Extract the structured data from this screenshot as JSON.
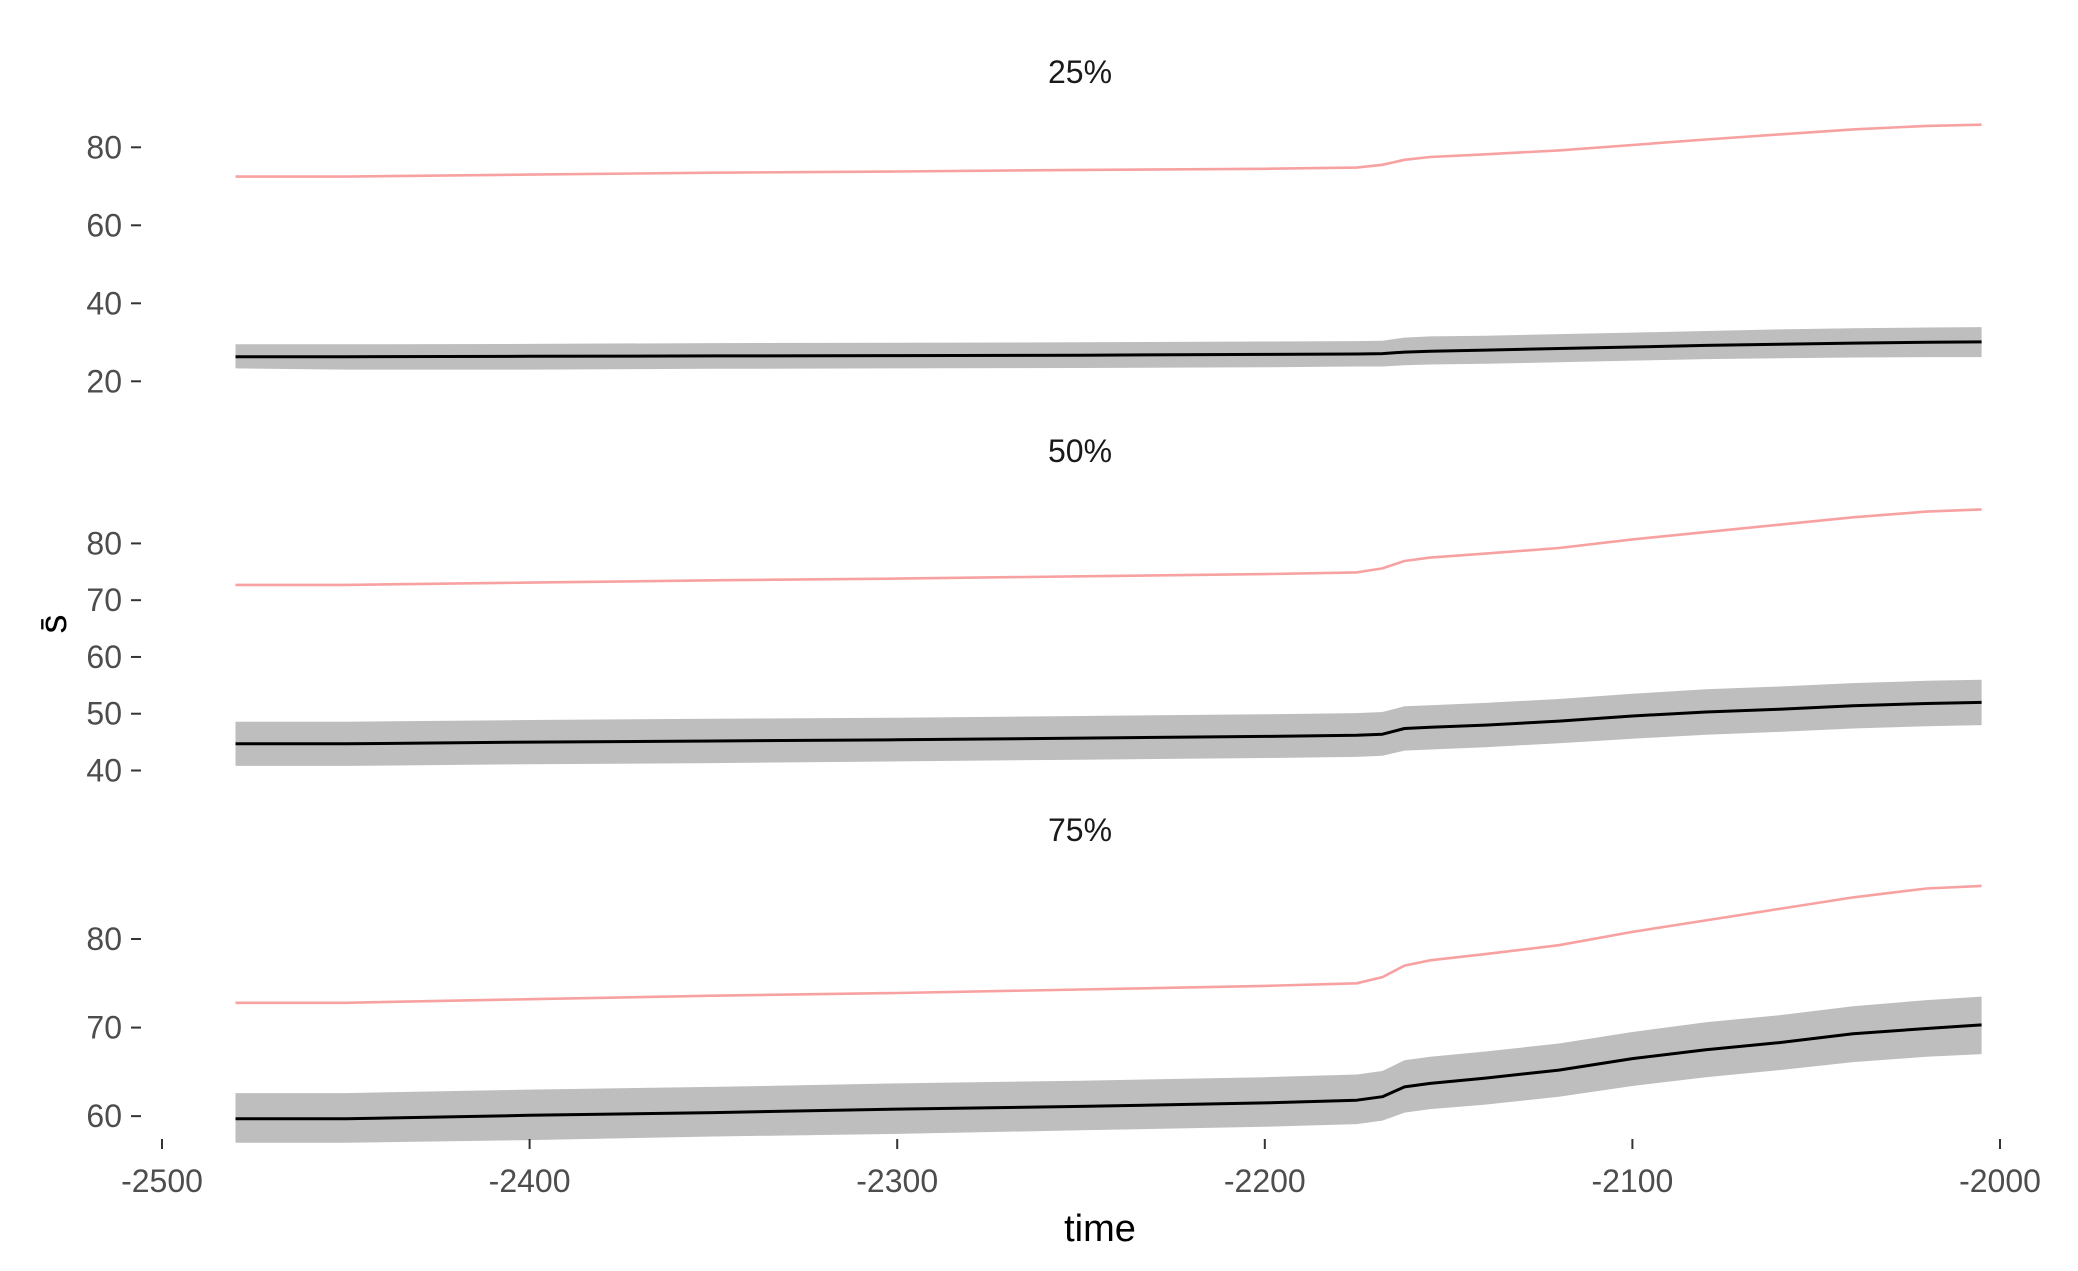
{
  "chart_data": {
    "type": "line",
    "xlabel": "time",
    "ylabel": "s̄",
    "xlim": [
      -2500,
      -2000
    ],
    "x_ticks": [
      "-2500",
      "-2400",
      "-2300",
      "-2200",
      "-2100",
      "-2000"
    ],
    "colors": {
      "upper_line": "#f8a1a1",
      "mean_line": "#000000",
      "band": "#bebebe"
    },
    "grid": false,
    "legend": "none",
    "panels": [
      {
        "title": "25%",
        "ylim": [
          17,
          87
        ],
        "y_ticks": [
          "20",
          "40",
          "60",
          "80"
        ],
        "series": [
          {
            "role": "upper",
            "x": [
              -2480,
              -2450,
              -2400,
              -2350,
              -2300,
              -2250,
              -2200,
              -2175,
              -2168,
              -2162,
              -2155,
              -2140,
              -2120,
              -2100,
              -2080,
              -2060,
              -2040,
              -2020,
              -2005
            ],
            "y": [
              72.5,
              72.5,
              73.0,
              73.5,
              73.8,
              74.2,
              74.5,
              74.8,
              75.5,
              76.8,
              77.5,
              78.2,
              79.2,
              80.6,
              82.0,
              83.3,
              84.6,
              85.5,
              85.8
            ]
          },
          {
            "role": "mean",
            "x": [
              -2480,
              -2450,
              -2400,
              -2350,
              -2300,
              -2250,
              -2200,
              -2175,
              -2168,
              -2162,
              -2155,
              -2140,
              -2120,
              -2100,
              -2080,
              -2060,
              -2040,
              -2020,
              -2005
            ],
            "y": [
              26.3,
              26.3,
              26.4,
              26.5,
              26.6,
              26.7,
              26.9,
              27.0,
              27.1,
              27.5,
              27.7,
              28.0,
              28.4,
              28.8,
              29.2,
              29.5,
              29.8,
              30.0,
              30.1
            ],
            "lower": [
              23.3,
              23.0,
              23.0,
              23.2,
              23.3,
              23.4,
              23.6,
              23.8,
              23.8,
              24.1,
              24.3,
              24.5,
              24.9,
              25.3,
              25.7,
              25.9,
              26.1,
              26.2,
              26.2
            ],
            "upper": [
              29.5,
              29.5,
              29.6,
              29.8,
              29.9,
              30.0,
              30.2,
              30.3,
              30.4,
              31.2,
              31.5,
              31.7,
              32.1,
              32.5,
              32.9,
              33.3,
              33.6,
              33.8,
              33.9
            ]
          }
        ]
      },
      {
        "title": "50%",
        "ylim": [
          38.5,
          88
        ],
        "y_ticks": [
          "40",
          "50",
          "60",
          "70",
          "80"
        ],
        "series": [
          {
            "role": "upper",
            "x": [
              -2480,
              -2450,
              -2400,
              -2350,
              -2300,
              -2250,
              -2200,
              -2175,
              -2168,
              -2162,
              -2155,
              -2140,
              -2120,
              -2100,
              -2080,
              -2060,
              -2040,
              -2020,
              -2005
            ],
            "y": [
              72.7,
              72.7,
              73.1,
              73.5,
              73.8,
              74.2,
              74.6,
              74.9,
              75.6,
              76.9,
              77.5,
              78.2,
              79.2,
              80.7,
              82.0,
              83.3,
              84.6,
              85.6,
              86.0
            ],
            "lower": [],
            "upper": []
          },
          {
            "role": "mean",
            "x": [
              -2480,
              -2450,
              -2400,
              -2350,
              -2300,
              -2250,
              -2200,
              -2175,
              -2168,
              -2162,
              -2155,
              -2140,
              -2120,
              -2100,
              -2080,
              -2060,
              -2040,
              -2020,
              -2005
            ],
            "y": [
              44.7,
              44.7,
              45.0,
              45.2,
              45.4,
              45.7,
              46.0,
              46.2,
              46.4,
              47.4,
              47.6,
              48.0,
              48.7,
              49.6,
              50.3,
              50.8,
              51.4,
              51.8,
              52.0
            ],
            "lower": [
              40.8,
              40.8,
              41.1,
              41.3,
              41.6,
              41.9,
              42.2,
              42.4,
              42.6,
              43.5,
              43.7,
              44.1,
              44.8,
              45.6,
              46.3,
              46.8,
              47.4,
              47.8,
              48.0
            ],
            "upper": [
              48.6,
              48.6,
              48.9,
              49.1,
              49.3,
              49.6,
              49.9,
              50.1,
              50.3,
              51.3,
              51.5,
              51.9,
              52.6,
              53.5,
              54.3,
              54.8,
              55.4,
              55.8,
              56.0
            ]
          }
        ]
      },
      {
        "title": "75%",
        "ylim": [
          55.5,
          87
        ],
        "y_ticks": [
          "60",
          "70",
          "80"
        ],
        "series": [
          {
            "role": "upper",
            "x": [
              -2480,
              -2450,
              -2400,
              -2350,
              -2300,
              -2250,
              -2200,
              -2175,
              -2168,
              -2162,
              -2155,
              -2140,
              -2120,
              -2100,
              -2080,
              -2060,
              -2040,
              -2020,
              -2005
            ],
            "y": [
              72.8,
              72.8,
              73.2,
              73.6,
              73.9,
              74.3,
              74.7,
              75.0,
              75.7,
              77.0,
              77.6,
              78.3,
              79.3,
              80.8,
              82.1,
              83.4,
              84.7,
              85.7,
              86.0
            ],
            "lower": [],
            "upper": []
          },
          {
            "role": "mean",
            "x": [
              -2480,
              -2450,
              -2400,
              -2350,
              -2300,
              -2250,
              -2200,
              -2175,
              -2168,
              -2162,
              -2155,
              -2140,
              -2120,
              -2100,
              -2080,
              -2060,
              -2040,
              -2020,
              -2005
            ],
            "y": [
              59.7,
              59.7,
              60.1,
              60.4,
              60.8,
              61.1,
              61.5,
              61.8,
              62.2,
              63.3,
              63.7,
              64.3,
              65.2,
              66.5,
              67.5,
              68.3,
              69.3,
              69.9,
              70.3
            ],
            "lower": [
              57.0,
              57.0,
              57.3,
              57.7,
              58.0,
              58.4,
              58.8,
              59.1,
              59.5,
              60.4,
              60.8,
              61.3,
              62.2,
              63.4,
              64.4,
              65.2,
              66.1,
              66.7,
              67.0
            ],
            "upper": [
              62.6,
              62.6,
              63.0,
              63.3,
              63.7,
              64.0,
              64.4,
              64.7,
              65.1,
              66.3,
              66.7,
              67.3,
              68.2,
              69.5,
              70.6,
              71.4,
              72.4,
              73.1,
              73.5
            ]
          }
        ]
      }
    ]
  }
}
